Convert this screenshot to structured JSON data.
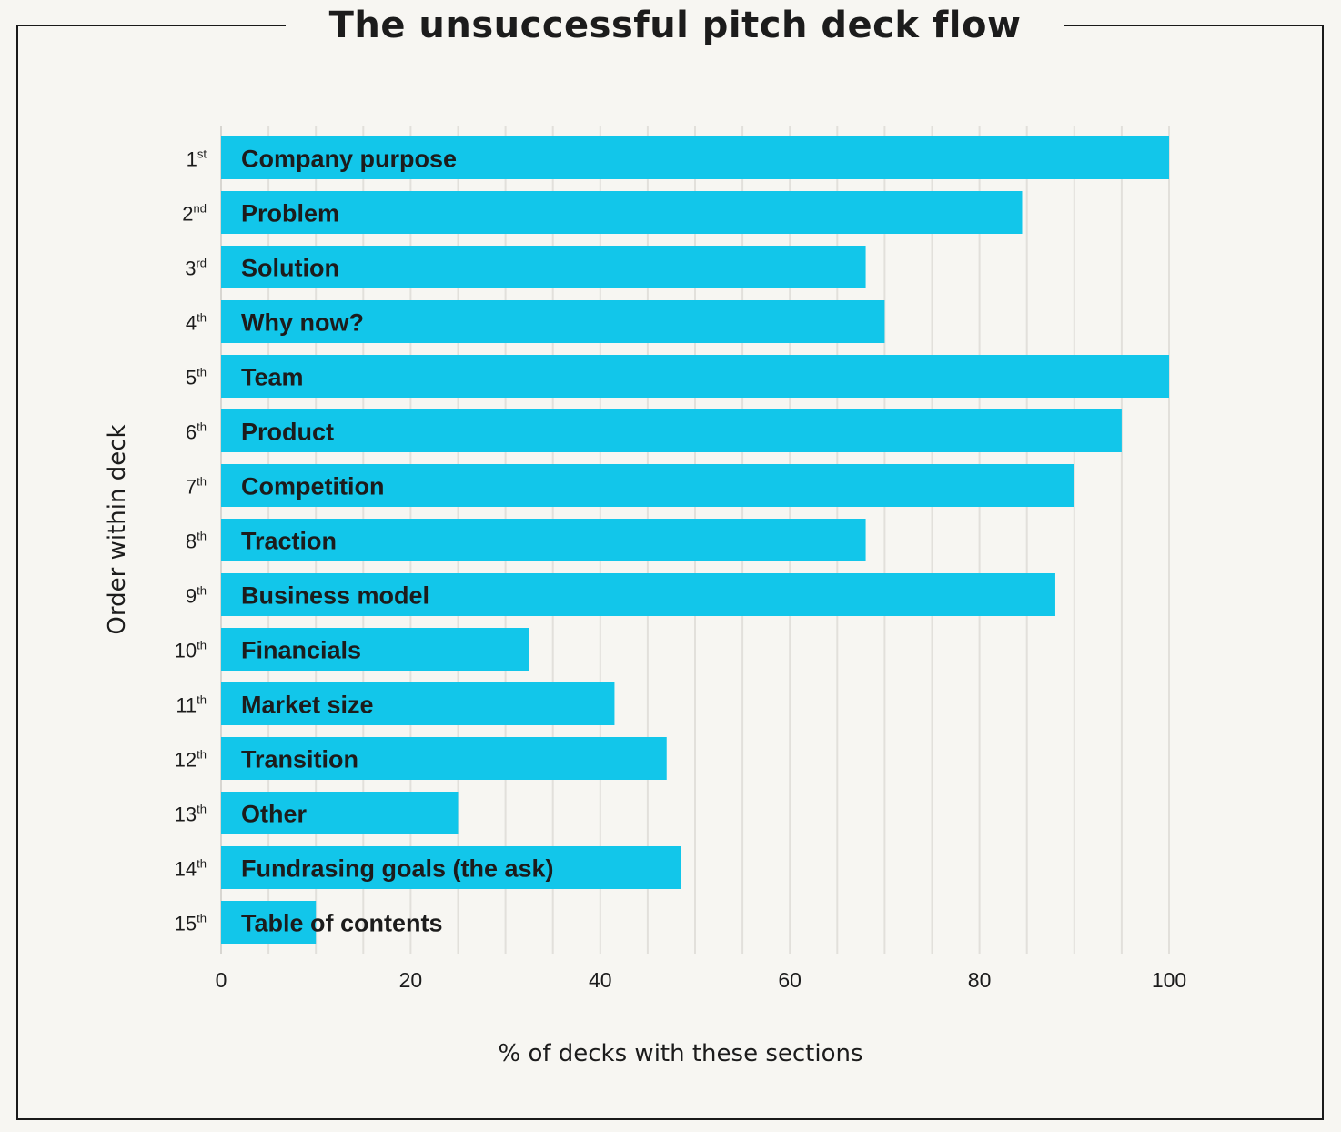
{
  "chart_data": {
    "type": "bar",
    "orientation": "horizontal",
    "title": "The unsuccessful pitch deck flow",
    "xlabel": "% of decks with these sections",
    "ylabel": "Order within deck",
    "xlim": [
      0,
      100
    ],
    "xticks": [
      0,
      20,
      40,
      60,
      80,
      100
    ],
    "grid": "vertical gridlines every 5",
    "bar_color": "#12c6ea",
    "categories": [
      {
        "order": "1",
        "suffix": "st",
        "label": "Company purpose",
        "value": 100
      },
      {
        "order": "2",
        "suffix": "nd",
        "label": "Problem",
        "value": 84.5
      },
      {
        "order": "3",
        "suffix": "rd",
        "label": "Solution",
        "value": 68
      },
      {
        "order": "4",
        "suffix": "th",
        "label": "Why now?",
        "value": 70
      },
      {
        "order": "5",
        "suffix": "th",
        "label": "Team",
        "value": 100
      },
      {
        "order": "6",
        "suffix": "th",
        "label": "Product",
        "value": 95
      },
      {
        "order": "7",
        "suffix": "th",
        "label": "Competition",
        "value": 90
      },
      {
        "order": "8",
        "suffix": "th",
        "label": "Traction",
        "value": 68
      },
      {
        "order": "9",
        "suffix": "th",
        "label": "Business model",
        "value": 88
      },
      {
        "order": "10",
        "suffix": "th",
        "label": "Financials",
        "value": 32.5
      },
      {
        "order": "11",
        "suffix": "th",
        "label": "Market size",
        "value": 41.5
      },
      {
        "order": "12",
        "suffix": "th",
        "label": "Transition",
        "value": 47
      },
      {
        "order": "13",
        "suffix": "th",
        "label": "Other",
        "value": 25
      },
      {
        "order": "14",
        "suffix": "th",
        "label": "Fundrasing goals (the ask)",
        "value": 48.5
      },
      {
        "order": "15",
        "suffix": "th",
        "label": "Table of contents",
        "value": 10
      }
    ]
  }
}
